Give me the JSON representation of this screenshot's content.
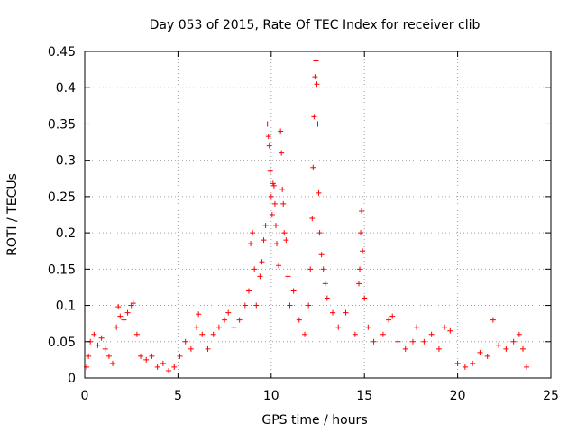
{
  "chart_data": {
    "type": "scatter",
    "title": "Day 053 of 2015, Rate Of TEC Index for receiver clib",
    "xlabel": "GPS time / hours",
    "ylabel": "ROTI / TECUs",
    "xlim": [
      0,
      25
    ],
    "ylim": [
      0,
      0.45
    ],
    "xticks": [
      "0",
      "5",
      "10",
      "15",
      "20",
      "25"
    ],
    "yticks": [
      "0",
      "0.05",
      "0.1",
      "0.15",
      "0.2",
      "0.25",
      "0.3",
      "0.35",
      "0.4",
      "0.45"
    ],
    "grid": true,
    "marker": "+",
    "color": "#ff0000",
    "series": [
      {
        "points": [
          [
            0.1,
            0.015
          ],
          [
            0.2,
            0.03
          ],
          [
            0.3,
            0.05
          ],
          [
            0.5,
            0.06
          ],
          [
            0.7,
            0.045
          ],
          [
            0.9,
            0.055
          ],
          [
            1.1,
            0.04
          ],
          [
            1.3,
            0.03
          ],
          [
            1.5,
            0.02
          ],
          [
            1.7,
            0.07
          ],
          [
            1.8,
            0.098
          ],
          [
            1.9,
            0.085
          ],
          [
            2.1,
            0.08
          ],
          [
            2.3,
            0.09
          ],
          [
            2.5,
            0.1
          ],
          [
            2.6,
            0.103
          ],
          [
            2.8,
            0.06
          ],
          [
            3.0,
            0.03
          ],
          [
            3.3,
            0.025
          ],
          [
            3.6,
            0.03
          ],
          [
            3.9,
            0.015
          ],
          [
            4.2,
            0.02
          ],
          [
            4.5,
            0.01
          ],
          [
            4.8,
            0.015
          ],
          [
            5.1,
            0.03
          ],
          [
            5.4,
            0.05
          ],
          [
            5.7,
            0.04
          ],
          [
            6.0,
            0.07
          ],
          [
            6.1,
            0.088
          ],
          [
            6.3,
            0.06
          ],
          [
            6.6,
            0.04
          ],
          [
            6.9,
            0.06
          ],
          [
            7.2,
            0.07
          ],
          [
            7.5,
            0.08
          ],
          [
            7.7,
            0.09
          ],
          [
            8.0,
            0.07
          ],
          [
            8.3,
            0.08
          ],
          [
            8.6,
            0.1
          ],
          [
            8.8,
            0.12
          ],
          [
            8.9,
            0.185
          ],
          [
            9.0,
            0.2
          ],
          [
            9.1,
            0.15
          ],
          [
            9.2,
            0.1
          ],
          [
            9.4,
            0.14
          ],
          [
            9.5,
            0.16
          ],
          [
            9.6,
            0.19
          ],
          [
            9.7,
            0.21
          ],
          [
            9.8,
            0.35
          ],
          [
            9.85,
            0.333
          ],
          [
            9.9,
            0.32
          ],
          [
            9.95,
            0.285
          ],
          [
            10.0,
            0.25
          ],
          [
            10.05,
            0.225
          ],
          [
            10.1,
            0.268
          ],
          [
            10.15,
            0.265
          ],
          [
            10.2,
            0.24
          ],
          [
            10.25,
            0.21
          ],
          [
            10.3,
            0.185
          ],
          [
            10.4,
            0.155
          ],
          [
            10.5,
            0.34
          ],
          [
            10.55,
            0.31
          ],
          [
            10.6,
            0.26
          ],
          [
            10.65,
            0.24
          ],
          [
            10.7,
            0.2
          ],
          [
            10.8,
            0.19
          ],
          [
            10.9,
            0.14
          ],
          [
            11.0,
            0.1
          ],
          [
            11.2,
            0.12
          ],
          [
            11.5,
            0.08
          ],
          [
            11.8,
            0.06
          ],
          [
            12.0,
            0.1
          ],
          [
            12.1,
            0.15
          ],
          [
            12.2,
            0.22
          ],
          [
            12.25,
            0.29
          ],
          [
            12.3,
            0.36
          ],
          [
            12.35,
            0.415
          ],
          [
            12.4,
            0.437
          ],
          [
            12.45,
            0.405
          ],
          [
            12.5,
            0.35
          ],
          [
            12.55,
            0.255
          ],
          [
            12.6,
            0.2
          ],
          [
            12.7,
            0.17
          ],
          [
            12.8,
            0.15
          ],
          [
            12.9,
            0.13
          ],
          [
            13.0,
            0.11
          ],
          [
            13.3,
            0.09
          ],
          [
            13.6,
            0.07
          ],
          [
            14.0,
            0.09
          ],
          [
            14.5,
            0.06
          ],
          [
            14.7,
            0.13
          ],
          [
            14.75,
            0.15
          ],
          [
            14.8,
            0.2
          ],
          [
            14.85,
            0.23
          ],
          [
            14.9,
            0.175
          ],
          [
            15.0,
            0.11
          ],
          [
            15.2,
            0.07
          ],
          [
            15.5,
            0.05
          ],
          [
            16.0,
            0.06
          ],
          [
            16.3,
            0.08
          ],
          [
            16.5,
            0.085
          ],
          [
            16.8,
            0.05
          ],
          [
            17.2,
            0.04
          ],
          [
            17.6,
            0.05
          ],
          [
            17.8,
            0.07
          ],
          [
            18.2,
            0.05
          ],
          [
            18.6,
            0.06
          ],
          [
            19.0,
            0.04
          ],
          [
            19.3,
            0.07
          ],
          [
            19.6,
            0.065
          ],
          [
            20.0,
            0.02
          ],
          [
            20.4,
            0.015
          ],
          [
            20.8,
            0.02
          ],
          [
            21.2,
            0.035
          ],
          [
            21.6,
            0.03
          ],
          [
            21.9,
            0.08
          ],
          [
            22.2,
            0.045
          ],
          [
            22.6,
            0.04
          ],
          [
            23.0,
            0.05
          ],
          [
            23.3,
            0.06
          ],
          [
            23.5,
            0.04
          ],
          [
            23.7,
            0.015
          ]
        ]
      }
    ]
  }
}
